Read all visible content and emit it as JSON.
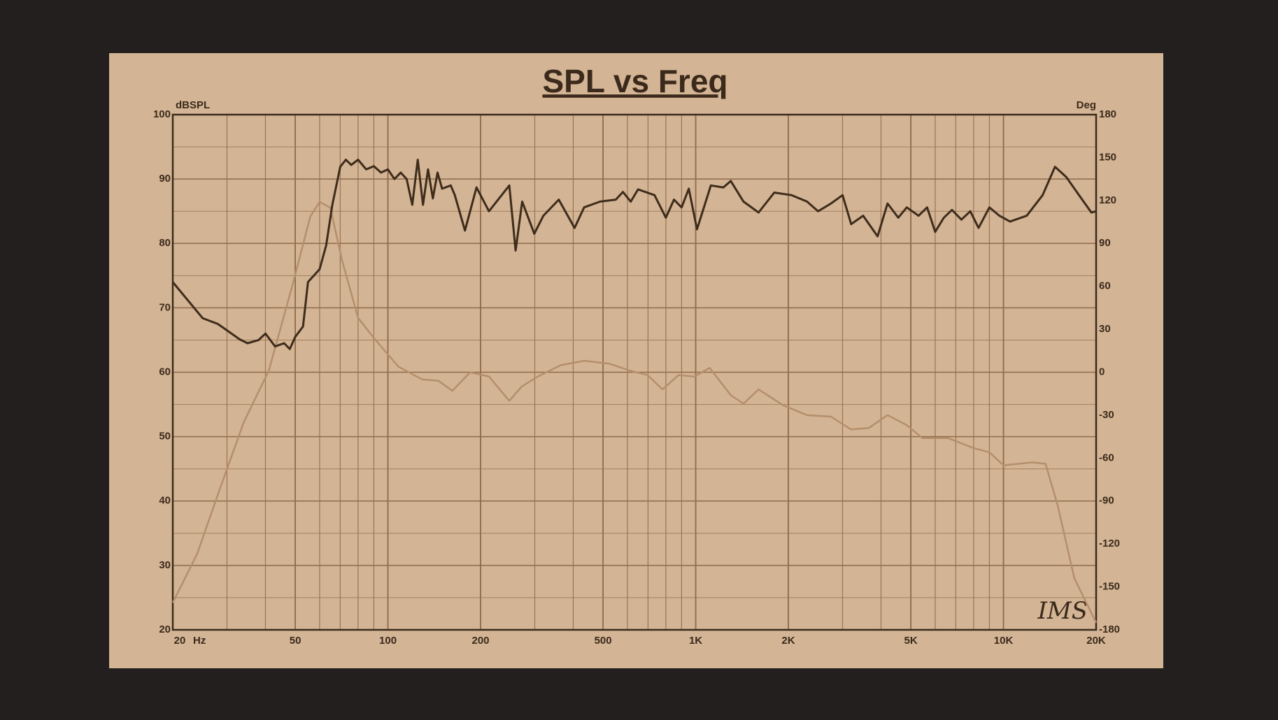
{
  "chart_data": {
    "type": "line",
    "title": "SPL vs Freq",
    "y_label": "dBSPL",
    "y2_label": "Deg",
    "x_label": "Hz",
    "annotation": "IMS",
    "log_x": true,
    "grid": true,
    "xlim": [
      20,
      20000
    ],
    "xticks": [
      20,
      50,
      100,
      200,
      500,
      {
        "value": 1000,
        "label": "1K"
      },
      {
        "value": 2000,
        "label": "2K"
      },
      {
        "value": 5000,
        "label": "5K"
      },
      {
        "value": 10000,
        "label": "10K"
      },
      {
        "value": 20000,
        "label": "20K"
      }
    ],
    "ylim": [
      20,
      100
    ],
    "yticks": [
      20,
      30,
      40,
      50,
      60,
      70,
      80,
      90,
      100
    ],
    "y2lim": [
      -180,
      180
    ],
    "y2ticks": [
      -180,
      -150,
      -120,
      -90,
      -60,
      -30,
      0,
      30,
      60,
      90,
      120,
      150,
      180
    ],
    "series": [
      {
        "color": "#3e2c1c",
        "axis": "y",
        "x": [
          20,
          22,
          25,
          28,
          30,
          33,
          35,
          38,
          40,
          43,
          46,
          48,
          50,
          53,
          55,
          60,
          63,
          66,
          70,
          73,
          76,
          80,
          85,
          90,
          95,
          100,
          105,
          110,
          115,
          120,
          125,
          130,
          135,
          140,
          145,
          150,
          160,
          165,
          178,
          194,
          213,
          248,
          260,
          273,
          299,
          320,
          359,
          404,
          434,
          489,
          550,
          580,
          615,
          650,
          735,
          800,
          850,
          900,
          950,
          1010,
          1120,
          1230,
          1300,
          1430,
          1600,
          1800,
          2050,
          2300,
          2500,
          2750,
          3000,
          3200,
          3500,
          3900,
          4200,
          4550,
          4850,
          5300,
          5650,
          6000,
          6400,
          6800,
          7300,
          7800,
          8300,
          9000,
          9700,
          10500,
          11900,
          13400,
          14700,
          16000,
          17600,
          19300,
          20000
        ],
        "values": [
          74,
          71.6,
          68.4,
          67.5,
          66.5,
          65.1,
          64.5,
          65,
          66,
          64,
          64.5,
          63.6,
          65.5,
          67.1,
          74,
          76,
          79.7,
          86,
          91.9,
          93,
          92.2,
          93,
          91.5,
          92,
          91,
          91.5,
          90,
          91,
          90,
          86,
          93,
          86,
          91.5,
          87,
          91,
          88.5,
          89,
          87.5,
          82,
          88.7,
          85,
          89,
          78.9,
          86.5,
          81.5,
          84.3,
          86.8,
          82.4,
          85.6,
          86.5,
          86.8,
          88,
          86.5,
          88.4,
          87.5,
          84,
          86.8,
          85.6,
          88.5,
          82.2,
          89,
          88.7,
          89.7,
          86.5,
          84.8,
          87.9,
          87.5,
          86.5,
          85,
          86.2,
          87.5,
          83,
          84.3,
          81.1,
          86.2,
          84,
          85.6,
          84.3,
          85.6,
          81.8,
          84,
          85.2,
          83.7,
          85,
          82.4,
          85.6,
          84.3,
          83.4,
          84.3,
          87.5,
          91.9,
          90.3,
          87.5,
          84.8,
          85
        ]
      },
      {
        "color": "#b58f6c",
        "axis": "y2",
        "x": [
          20,
          24,
          28.5,
          34,
          41,
          49,
          56,
          60,
          65,
          71,
          80,
          90,
          108,
          129,
          146,
          162,
          185,
          213,
          248,
          272,
          307,
          365,
          434,
          523,
          615,
          698,
          780,
          880,
          990,
          1110,
          1300,
          1430,
          1600,
          1920,
          2300,
          2750,
          3200,
          3650,
          4200,
          4850,
          5450,
          6600,
          8000,
          9000,
          10000,
          12400,
          13700,
          15000,
          17000,
          20000
        ],
        "values": [
          -161,
          -127,
          -81,
          -35,
          1,
          61,
          109,
          119,
          115,
          78,
          38,
          24,
          4,
          -5,
          -6,
          -13,
          0,
          -3,
          -20,
          -10,
          -3,
          5,
          8,
          6,
          1,
          -2,
          -12,
          -2,
          -3,
          3,
          -16,
          -22,
          -12,
          -23,
          -30,
          -31,
          -40,
          -39,
          -30,
          -37,
          -46,
          -46,
          -53,
          -56,
          -65,
          -63,
          -64,
          -93,
          -144,
          -175
        ]
      }
    ]
  }
}
